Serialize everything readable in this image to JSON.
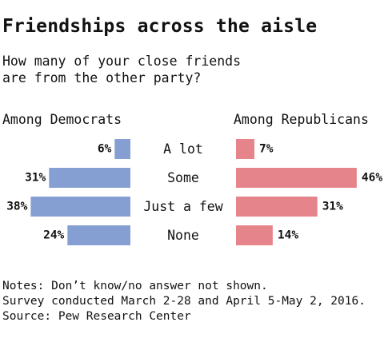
{
  "title": "Friendships across the aisle",
  "subtitle_lines": [
    "How many of your close friends",
    "are from the other party?"
  ],
  "colors": {
    "democrats": "#869fd2",
    "republicans": "#e6848b"
  },
  "chart_data": {
    "type": "bar",
    "orientation": "horizontal-diverging",
    "categories": [
      "A lot",
      "Some",
      "Just a few",
      "None"
    ],
    "series": [
      {
        "name": "Among Democrats",
        "values": [
          6,
          31,
          38,
          24
        ],
        "value_labels": [
          "6%",
          "31%",
          "38%",
          "24%"
        ]
      },
      {
        "name": "Among Republicans",
        "values": [
          7,
          46,
          31,
          14
        ],
        "value_labels": [
          "7%",
          "46%",
          "31%",
          "14%"
        ]
      }
    ],
    "unit": "%"
  },
  "notes": [
    "Notes: Don’t know/no answer not shown.",
    "Survey conducted March 2-28 and April 5-May 2, 2016.",
    "Source: Pew Research Center"
  ]
}
